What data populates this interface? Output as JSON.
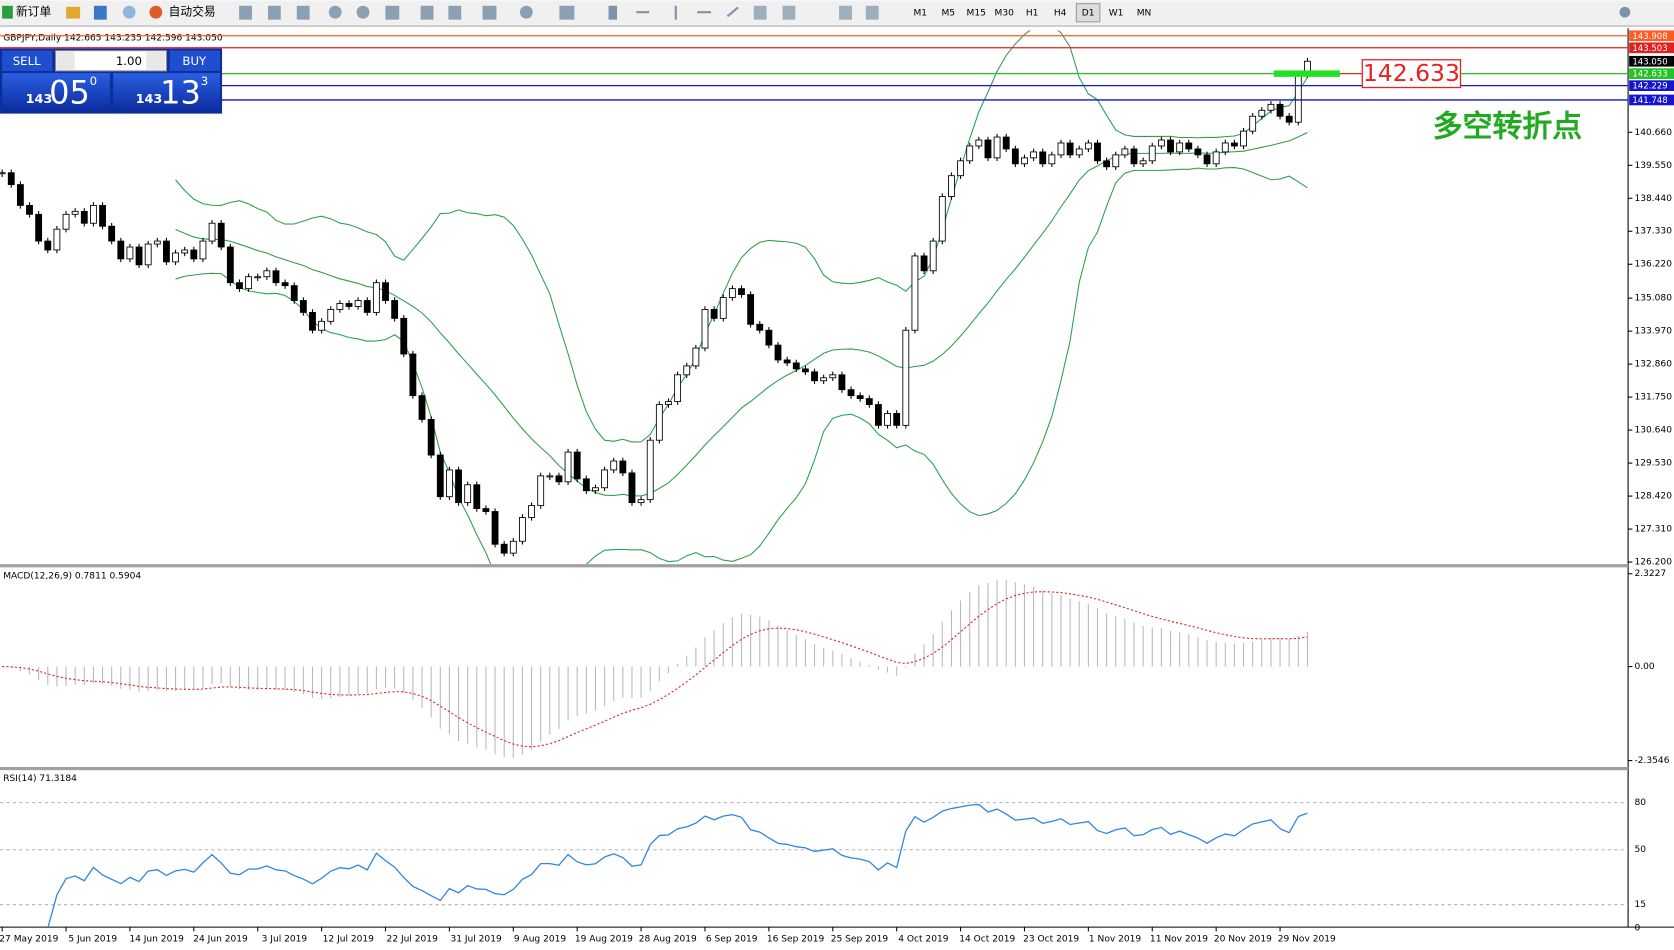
{
  "toolbar": {
    "new_order": "新订单",
    "auto_trade": "自动交易",
    "timeframes": [
      "M1",
      "M5",
      "M15",
      "M30",
      "H1",
      "H4",
      "D1",
      "W1",
      "MN"
    ],
    "active_timeframe": "D1"
  },
  "trade_panel": {
    "sell": "SELL",
    "lots": "1.00",
    "buy": "BUY",
    "bid_big": "143",
    "bid_pips": "05",
    "bid_frac": "0",
    "ask_big": "143",
    "ask_pips": "13",
    "ask_frac": "3"
  },
  "chart_data": {
    "type": "candlestick",
    "title": "GBPJPY,Daily  142.665 143.235 142.596 143.050",
    "categories": [
      "27 May 2019",
      null,
      null,
      null,
      null,
      null,
      null,
      "5 Jun 2019",
      null,
      null,
      null,
      null,
      null,
      null,
      "14 Jun 2019",
      null,
      null,
      null,
      null,
      null,
      null,
      "24 Jun 2019",
      null,
      null,
      null,
      null,
      null,
      null,
      "3 Jul 2019",
      null,
      null,
      null,
      null,
      null,
      null,
      "12 Jul 2019",
      null,
      null,
      null,
      null,
      null,
      null,
      "22 Jul 2019",
      null,
      null,
      null,
      null,
      null,
      null,
      "31 Jul 2019",
      null,
      null,
      null,
      null,
      null,
      null,
      "9 Aug 2019",
      null,
      null,
      null,
      null,
      null,
      null,
      "19 Aug 2019",
      null,
      null,
      null,
      null,
      null,
      null,
      "28 Aug 2019",
      null,
      null,
      null,
      null,
      null,
      null,
      "6 Sep 2019",
      null,
      null,
      null,
      null,
      null,
      null,
      "16 Sep 2019",
      null,
      null,
      null,
      null,
      null,
      null,
      "25 Sep 2019",
      null,
      null,
      null,
      null,
      null,
      null,
      "4 Oct 2019",
      null,
      null,
      null,
      null,
      null,
      null,
      "14 Oct 2019",
      null,
      null,
      null,
      null,
      null,
      null,
      "23 Oct 2019",
      null,
      null,
      null,
      null,
      null,
      null,
      "1 Nov 2019",
      null,
      null,
      null,
      null,
      null,
      null,
      "11 Nov 2019",
      null,
      null,
      null,
      null,
      null,
      null,
      "20 Nov 2019",
      null,
      null,
      null,
      null,
      null,
      null,
      "29 Nov 2019",
      null,
      null,
      null
    ],
    "close": [
      139.3,
      138.9,
      138.2,
      137.9,
      137.0,
      136.7,
      137.4,
      137.9,
      138.0,
      137.6,
      138.2,
      137.5,
      137.0,
      136.4,
      136.8,
      136.2,
      136.9,
      137.0,
      136.3,
      136.6,
      136.7,
      136.4,
      137.0,
      137.6,
      136.8,
      135.6,
      135.4,
      135.8,
      135.8,
      136.0,
      135.6,
      135.5,
      135.0,
      134.6,
      134.0,
      134.3,
      134.7,
      134.9,
      134.8,
      135.0,
      134.6,
      135.6,
      135.0,
      134.4,
      133.2,
      131.8,
      131.0,
      129.8,
      128.4,
      129.3,
      128.2,
      128.8,
      128.0,
      127.9,
      126.8,
      126.5,
      126.9,
      127.7,
      128.1,
      129.1,
      129.1,
      128.9,
      129.9,
      129.0,
      128.6,
      128.7,
      129.3,
      129.6,
      129.2,
      128.2,
      128.3,
      130.3,
      131.5,
      131.6,
      132.5,
      132.8,
      133.4,
      134.7,
      134.4,
      135.1,
      135.4,
      135.2,
      134.2,
      134.0,
      133.5,
      133.0,
      132.9,
      132.7,
      132.6,
      132.3,
      132.4,
      132.5,
      132.0,
      131.8,
      131.7,
      131.5,
      130.8,
      131.2,
      130.8,
      134.0,
      136.5,
      136.0,
      137.0,
      138.5,
      139.2,
      139.7,
      140.2,
      140.4,
      139.8,
      140.5,
      140.1,
      139.6,
      139.8,
      140.0,
      139.6,
      139.9,
      140.3,
      139.9,
      140.1,
      140.3,
      139.7,
      139.5,
      139.9,
      140.1,
      139.6,
      139.7,
      140.2,
      140.4,
      140.0,
      140.3,
      140.1,
      139.9,
      139.6,
      140.0,
      140.3,
      140.2,
      140.7,
      141.2,
      141.4,
      141.6,
      141.2,
      141.0,
      142.6,
      143.05
    ],
    "ylim": [
      126.13,
      144.09
    ],
    "yticks": [
      {
        "value": 140.66,
        "label": "140.660"
      },
      {
        "value": 139.55,
        "label": "139.550"
      },
      {
        "value": 138.44,
        "label": "138.440"
      },
      {
        "value": 137.33,
        "label": "137.330"
      },
      {
        "value": 136.22,
        "label": "136.220"
      },
      {
        "value": 135.08,
        "label": "135.080"
      },
      {
        "value": 133.97,
        "label": "133.970"
      },
      {
        "value": 132.86,
        "label": "132.860"
      },
      {
        "value": 131.75,
        "label": "131.750"
      },
      {
        "value": 130.64,
        "label": "130.640"
      },
      {
        "value": 129.53,
        "label": "129.530"
      },
      {
        "value": 128.42,
        "label": "128.420"
      },
      {
        "value": 127.31,
        "label": "127.310"
      },
      {
        "value": 126.2,
        "label": "126.200"
      }
    ],
    "levels": [
      {
        "value": 143.908,
        "label": "143.908",
        "color": "#ff5a1f",
        "line": true
      },
      {
        "value": 143.503,
        "label": "143.503",
        "color": "#e02020",
        "line": true
      },
      {
        "value": 143.05,
        "label": "143.050",
        "color": "#000000",
        "line": false
      },
      {
        "value": 142.633,
        "label": "142.633",
        "color": "#22c322",
        "line": true
      },
      {
        "value": 142.229,
        "label": "142.229",
        "color": "#1515d0",
        "line": true
      },
      {
        "value": 141.748,
        "label": "141.748",
        "color": "#1515d0",
        "line": true
      }
    ],
    "annotation_price": {
      "value": 142.633,
      "label": "142.633",
      "color": "#e82020"
    },
    "annotation_text": "多空转折点",
    "band_color": "#2e9e4a",
    "macd": {
      "label": "MACD(12,26,9) 0.7811 0.5904",
      "ylim": [
        -2.3546,
        2.3227
      ],
      "yticks": [
        2.3227,
        {
          "value": 0,
          "label": "0.00"
        },
        -2.3546
      ],
      "hist_color": "#b8b8b8",
      "signal_color": "#e02020"
    },
    "rsi": {
      "label": "RSI(14) 71.3184",
      "ylim": [
        0,
        100
      ],
      "yticks": [
        80,
        50,
        15,
        0
      ],
      "color": "#2e86de"
    }
  }
}
